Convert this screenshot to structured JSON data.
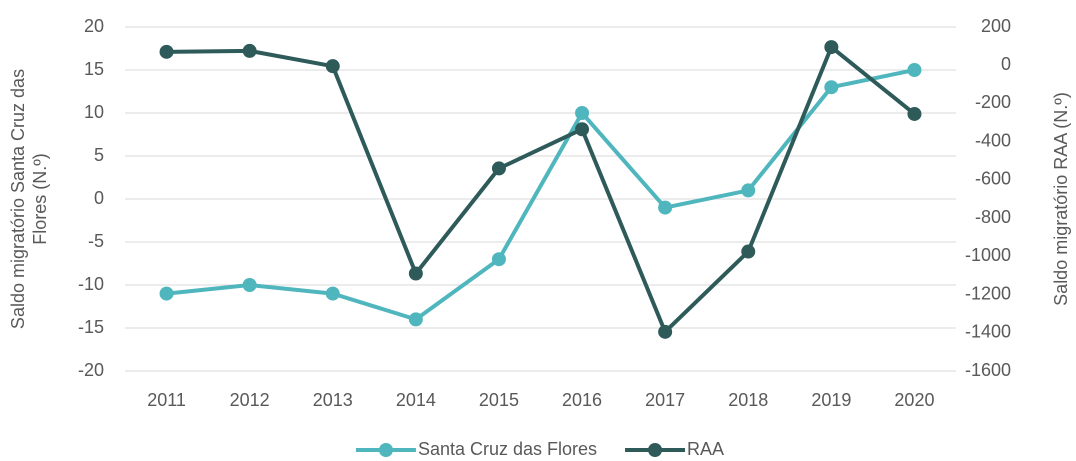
{
  "chart_data": {
    "type": "line",
    "y_label": "Saldo migratório Santa Cruz das Flores (N.º)",
    "y2_label": "Saldo migratório RAA (N.º)",
    "categories": [
      "2011",
      "2012",
      "2013",
      "2014",
      "2015",
      "2016",
      "2017",
      "2018",
      "2019",
      "2020"
    ],
    "series": [
      {
        "name": "Santa Cruz das Flores",
        "color": "#4fb6be",
        "values": [
          -11,
          -10,
          -11,
          -14,
          -7,
          10,
          -1,
          1,
          13,
          15
        ]
      },
      {
        "name": "RAA",
        "color": "#2e5a5a",
        "axis": "y2",
        "values": [
          70,
          75,
          -5,
          -1090,
          -540,
          -335,
          -1395,
          -975,
          95,
          -255
        ]
      }
    ],
    "ylim": [
      -20,
      20
    ],
    "yticks": [
      -20,
      -15,
      -10,
      -5,
      0,
      5,
      10,
      15,
      20
    ],
    "y2lim": [
      -1600,
      200
    ],
    "y2ticks": [
      -1600,
      -1400,
      -1200,
      -1000,
      -800,
      -600,
      -400,
      -200,
      0,
      200
    ],
    "grid": true,
    "legend": "bottom"
  }
}
